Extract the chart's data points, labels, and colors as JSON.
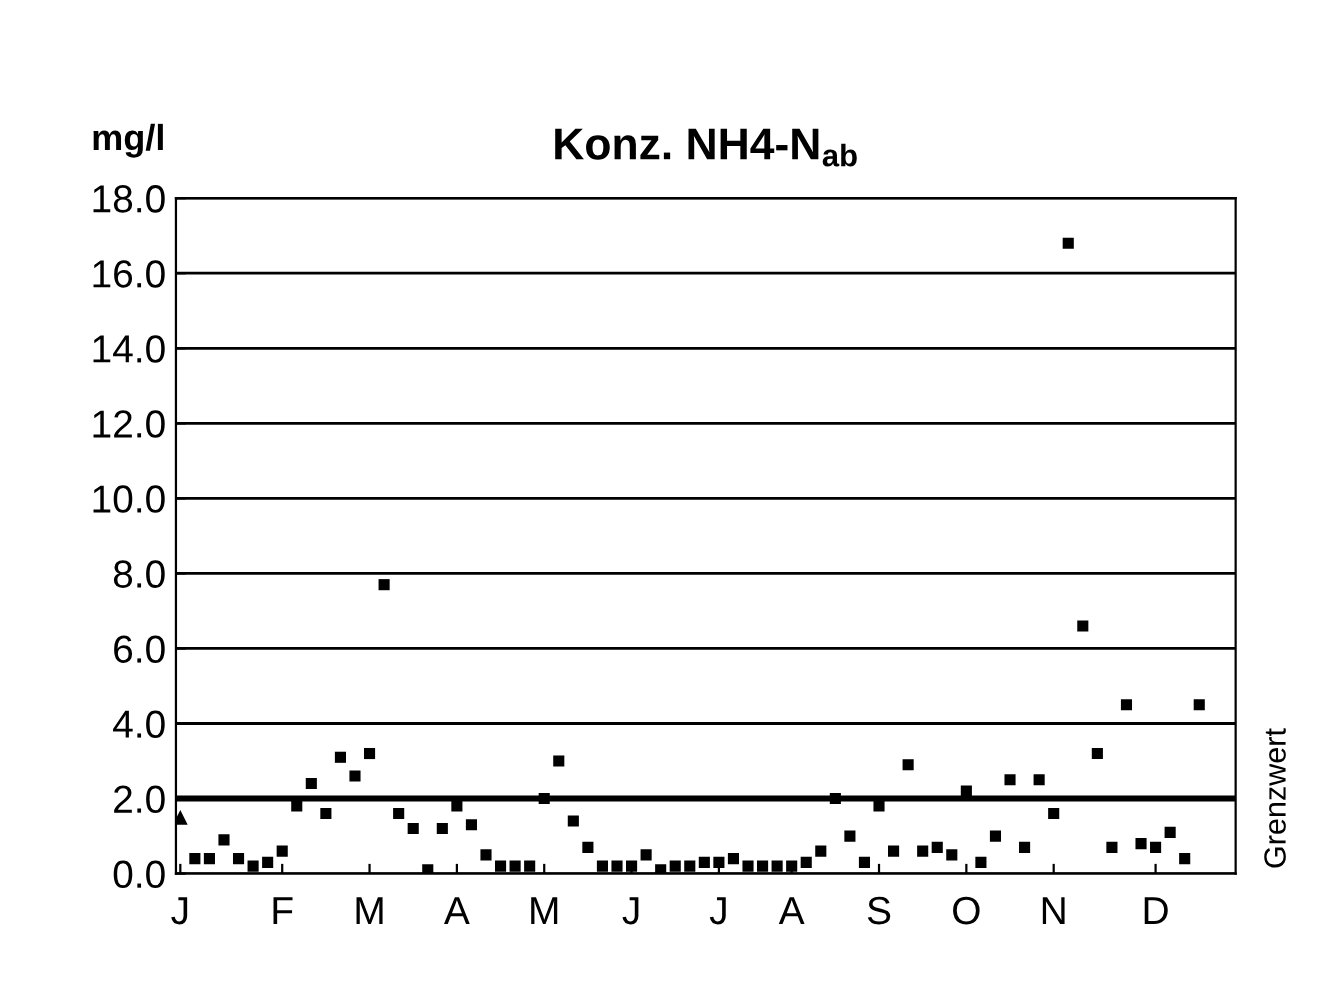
{
  "chart_data": {
    "type": "scatter",
    "title": "Konz. NH4-N$_{ab}$",
    "ylabel": "mg/l",
    "categories": [
      "J",
      null,
      null,
      null,
      null,
      null,
      null,
      "F",
      null,
      null,
      null,
      null,
      null,
      "M",
      null,
      null,
      null,
      null,
      null,
      "A",
      null,
      null,
      null,
      null,
      null,
      "M",
      null,
      null,
      null,
      null,
      null,
      "J",
      null,
      null,
      null,
      null,
      null,
      "J",
      null,
      null,
      null,
      null,
      "A",
      null,
      null,
      null,
      null,
      null,
      "S",
      null,
      null,
      null,
      null,
      null,
      "O",
      null,
      null,
      null,
      null,
      null,
      "N",
      null,
      null,
      null,
      null,
      null,
      null,
      "D",
      null,
      null,
      null
    ],
    "ylim": [
      0,
      18
    ],
    "yticks": [
      {
        "value": 0,
        "label": "0.0"
      },
      {
        "value": 2,
        "label": "2.0"
      },
      {
        "value": 4,
        "label": "4.0"
      },
      {
        "value": 6,
        "label": "6.0"
      },
      {
        "value": 8,
        "label": "8.0"
      },
      {
        "value": 10,
        "label": "10.0"
      },
      {
        "value": 12,
        "label": "12.0"
      },
      {
        "value": 14,
        "label": "14.0"
      },
      {
        "value": 16,
        "label": "16.0"
      },
      {
        "value": 18,
        "label": "18.0"
      }
    ],
    "grid": "y",
    "legend": false,
    "ref_lines": [
      {
        "axis": "y",
        "value": 2.0,
        "label": "Grenzwert",
        "color": "#000000"
      }
    ],
    "series": [
      {
        "color": "#000000",
        "marker": "triangle",
        "values": [
          1.5,
          null,
          null,
          null,
          null,
          null,
          null,
          null,
          null,
          null,
          null,
          null,
          null,
          null,
          null,
          null,
          null,
          null,
          null,
          null,
          null,
          null,
          null,
          null,
          null,
          null,
          null,
          null,
          null,
          null,
          null,
          null,
          null,
          null,
          null,
          null,
          null,
          null,
          null,
          null,
          null,
          null,
          null,
          null,
          null,
          null,
          null,
          null,
          null,
          null,
          null,
          null,
          null,
          null,
          null,
          null,
          null,
          null,
          null,
          null,
          null,
          null,
          null,
          null,
          null,
          null,
          null,
          null,
          null,
          null,
          null
        ]
      },
      {
        "color": "#000000",
        "marker": "square",
        "values": [
          null,
          0.4,
          0.4,
          0.9,
          0.4,
          0.2,
          0.3,
          0.6,
          1.8,
          2.4,
          1.6,
          3.1,
          2.6,
          3.2,
          7.7,
          1.6,
          1.2,
          0.1,
          1.2,
          1.8,
          1.3,
          0.5,
          0.2,
          0.2,
          0.2,
          2.0,
          3.0,
          1.4,
          0.7,
          0.2,
          0.2,
          0.2,
          0.5,
          0.1,
          0.2,
          0.2,
          0.3,
          0.3,
          0.4,
          0.2,
          0.2,
          0.2,
          0.2,
          0.3,
          0.6,
          2.0,
          1.0,
          0.3,
          1.8,
          0.6,
          2.9,
          0.6,
          0.7,
          0.5,
          2.2,
          0.3,
          1.0,
          2.5,
          0.7,
          2.5,
          1.6,
          16.8,
          6.6,
          3.2,
          0.7,
          4.5,
          0.8,
          0.7,
          1.1,
          0.4,
          4.5
        ]
      }
    ]
  }
}
